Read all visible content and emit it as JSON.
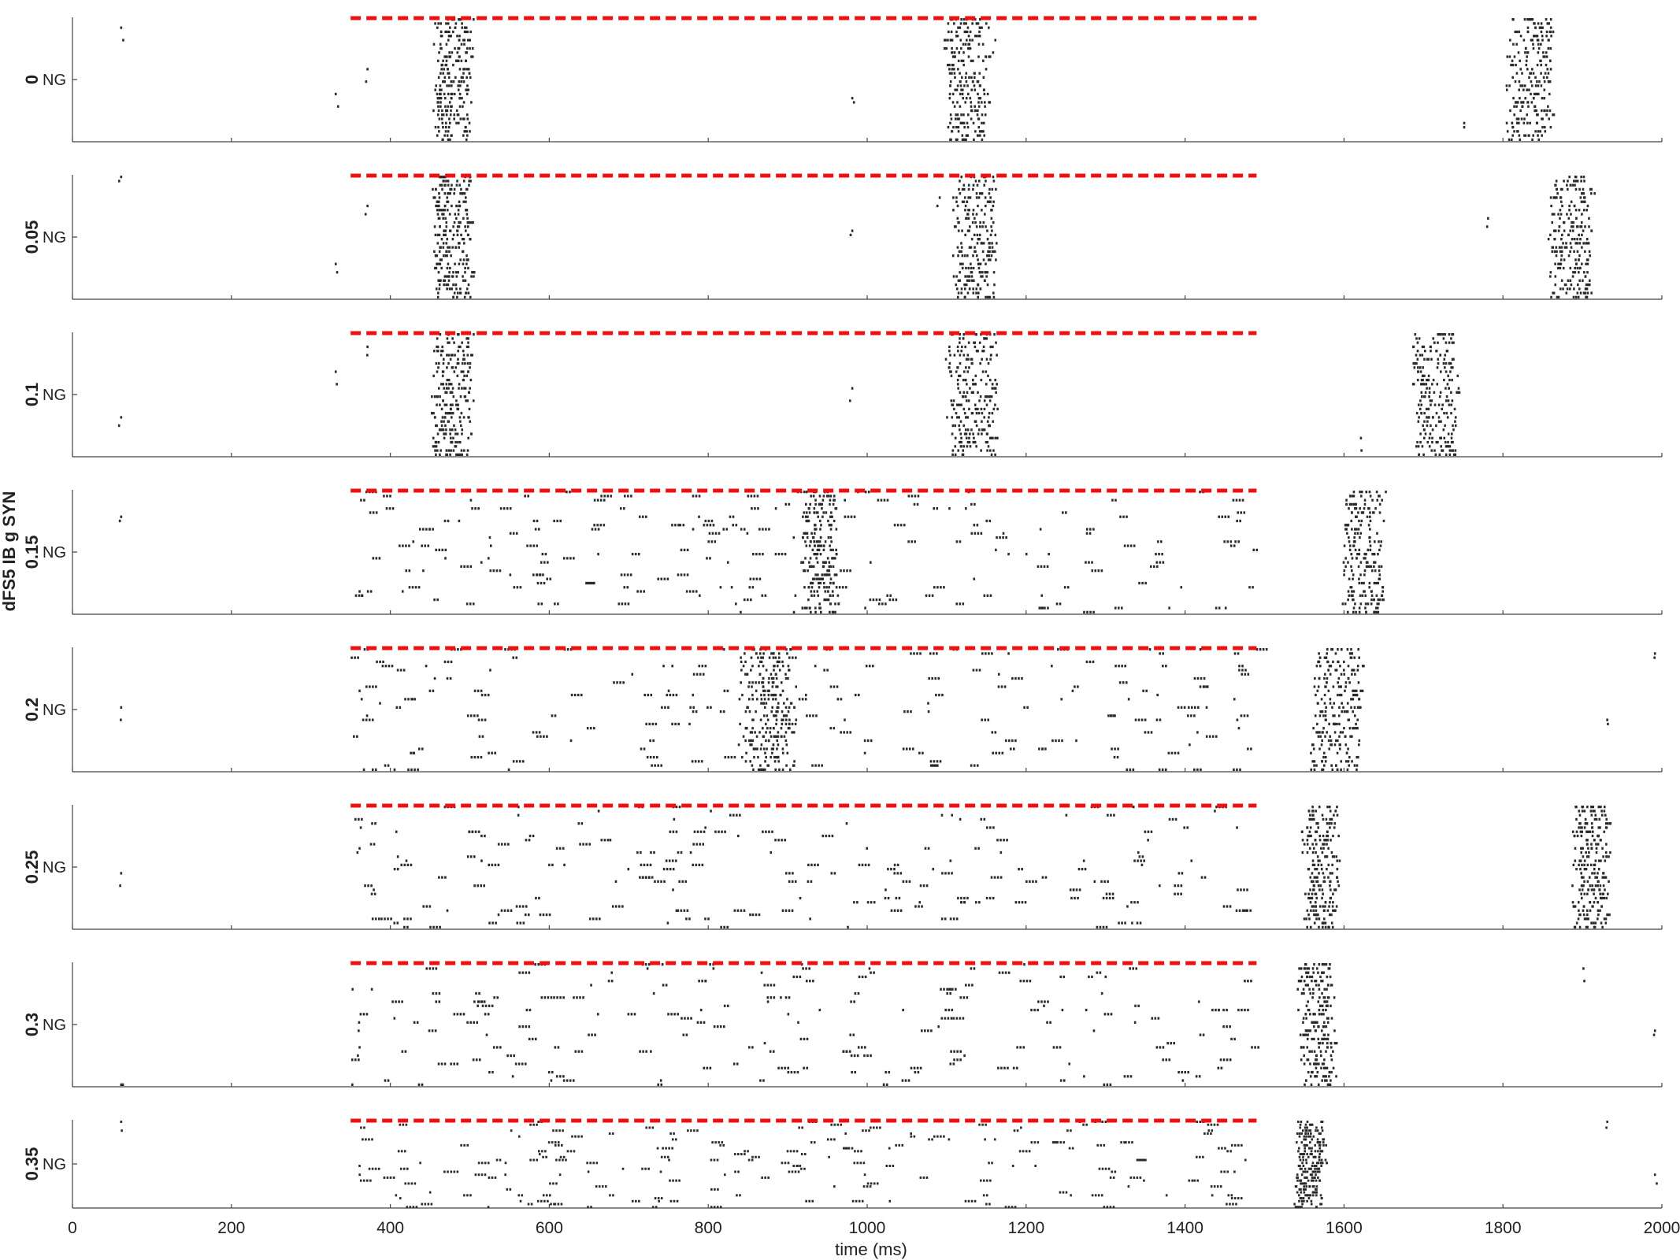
{
  "chart_data": {
    "type": "scatter",
    "title": "",
    "xlabel": "time (ms)",
    "ylabel": "dFS5 IB g SYN",
    "xlim": [
      0,
      2000
    ],
    "xticks": [
      0,
      200,
      400,
      600,
      800,
      1000,
      1200,
      1400,
      1600,
      1800,
      2000
    ],
    "row_label": "NG",
    "stimulus_window_ms": [
      350,
      1490
    ],
    "stimulus_color": "#ee1111",
    "spike_color": "#2b2b2b",
    "grid": false,
    "series": [
      {
        "name": "0",
        "bursts": [
          [
            455,
            500
          ],
          [
            1100,
            1150
          ],
          [
            1805,
            1860
          ]
        ],
        "sparse_spikes": [
          60,
          330,
          370,
          980,
          1160,
          1750
        ]
      },
      {
        "name": "0.05",
        "bursts": [
          [
            455,
            500
          ],
          [
            1110,
            1160
          ],
          [
            1860,
            1910
          ]
        ],
        "sparse_spikes": [
          60,
          330,
          370,
          980,
          1090,
          1780
        ]
      },
      {
        "name": "0.1",
        "bursts": [
          [
            455,
            500
          ],
          [
            1100,
            1160
          ],
          [
            1690,
            1740
          ]
        ],
        "sparse_spikes": [
          60,
          330,
          370,
          980,
          1620
        ]
      },
      {
        "name": "0.15",
        "bursts": [
          [
            920,
            960
          ],
          [
            1600,
            1650
          ]
        ],
        "scattered_range": [
          350,
          1490
        ],
        "sparse_spikes": [
          60,
          360
        ]
      },
      {
        "name": "0.2",
        "bursts": [
          [
            840,
            905
          ],
          [
            1560,
            1620
          ]
        ],
        "scattered_range": [
          350,
          1490
        ],
        "sparse_spikes": [
          60,
          360,
          1930,
          1990
        ]
      },
      {
        "name": "0.25",
        "bursts": [
          [
            1550,
            1590
          ],
          [
            1890,
            1930
          ]
        ],
        "scattered_range": [
          350,
          1490
        ],
        "sparse_spikes": [
          60,
          360
        ]
      },
      {
        "name": "0.3",
        "bursts": [
          [
            1545,
            1585
          ]
        ],
        "scattered_range": [
          350,
          1490
        ],
        "sparse_spikes": [
          60,
          360,
          1900,
          1990
        ]
      },
      {
        "name": "0.35",
        "bursts": [
          [
            1540,
            1575
          ]
        ],
        "scattered_range": [
          350,
          1490
        ],
        "sparse_spikes": [
          60,
          360,
          1930,
          1990
        ]
      }
    ]
  }
}
